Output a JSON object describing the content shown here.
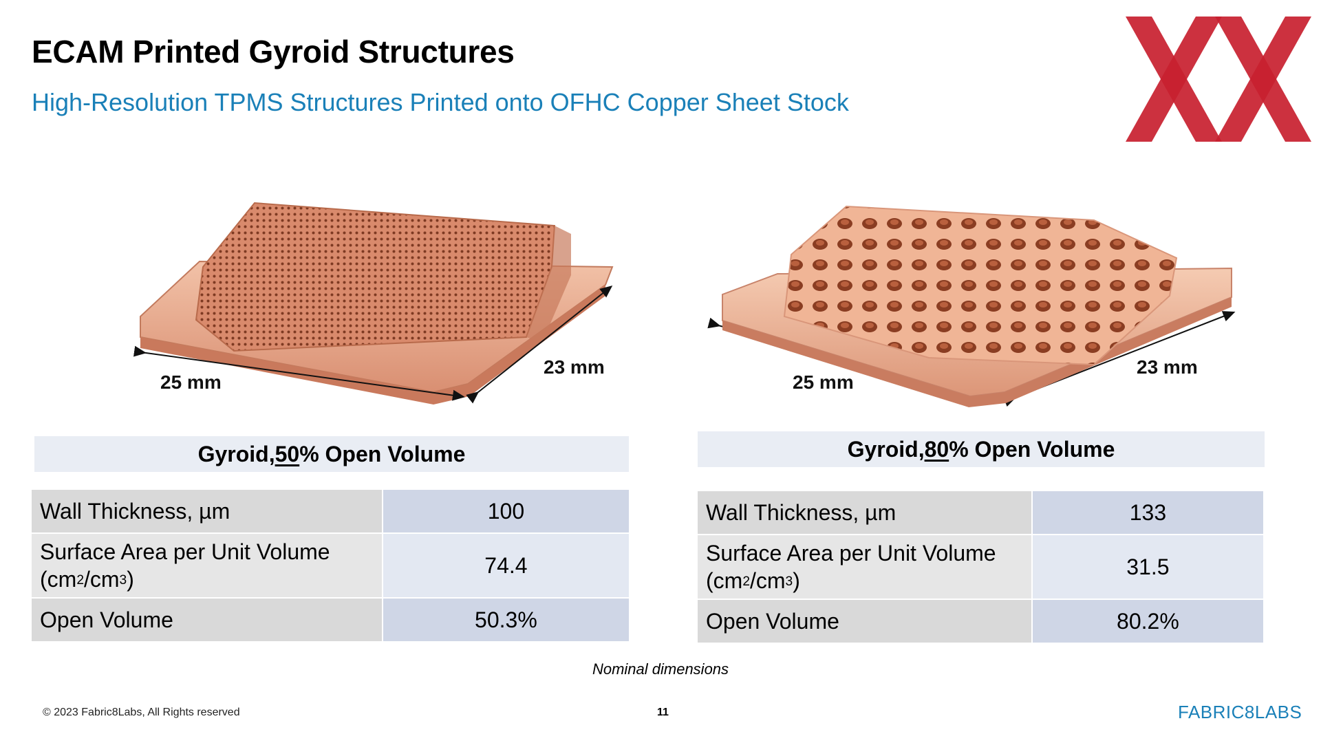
{
  "header": {
    "title": "ECAM Printed Gyroid Structures",
    "subtitle": "High-Resolution TPMS Structures Printed onto OFHC Copper Sheet Stock"
  },
  "logo": {
    "icon": "double-x-logo",
    "color": "#c8202f"
  },
  "samples": [
    {
      "dim_length": "25 mm",
      "dim_width": "23 mm",
      "heading_pre": "Gyroid, ",
      "heading_pct": "50",
      "heading_post": "% Open Volume",
      "rows": {
        "wall_label": "Wall Thickness, µm",
        "wall_value": "100",
        "surface_label_line1": "Surface Area per Unit Volume",
        "surface_label_line2_a": "(cm",
        "surface_label_sup1": "2",
        "surface_label_line2_b": "/cm",
        "surface_label_sup2": "3",
        "surface_label_line2_c": ")",
        "surface_value": "74.4",
        "open_label": "Open Volume",
        "open_value": "50.3%"
      }
    },
    {
      "dim_length": "25 mm",
      "dim_width": "23 mm",
      "heading_pre": "Gyroid, ",
      "heading_pct": "80",
      "heading_post": "% Open Volume",
      "rows": {
        "wall_label": "Wall Thickness, µm",
        "wall_value": "133",
        "surface_label_line1": "Surface Area per Unit Volume",
        "surface_label_line2_a": "(cm",
        "surface_label_sup1": "2",
        "surface_label_line2_b": "/cm",
        "surface_label_sup2": "3",
        "surface_label_line2_c": ")",
        "surface_value": "31.5",
        "open_label": "Open Volume",
        "open_value": "80.2%"
      }
    }
  ],
  "note": "Nominal dimensions",
  "footer": {
    "copyright": "© 2023 Fabric8Labs, All Rights reserved",
    "page": "11",
    "brand": "FABRIC8LABS"
  },
  "colors": {
    "subtitle": "#1a80b8",
    "copper": "#e0957a",
    "logo": "#c8202f"
  }
}
